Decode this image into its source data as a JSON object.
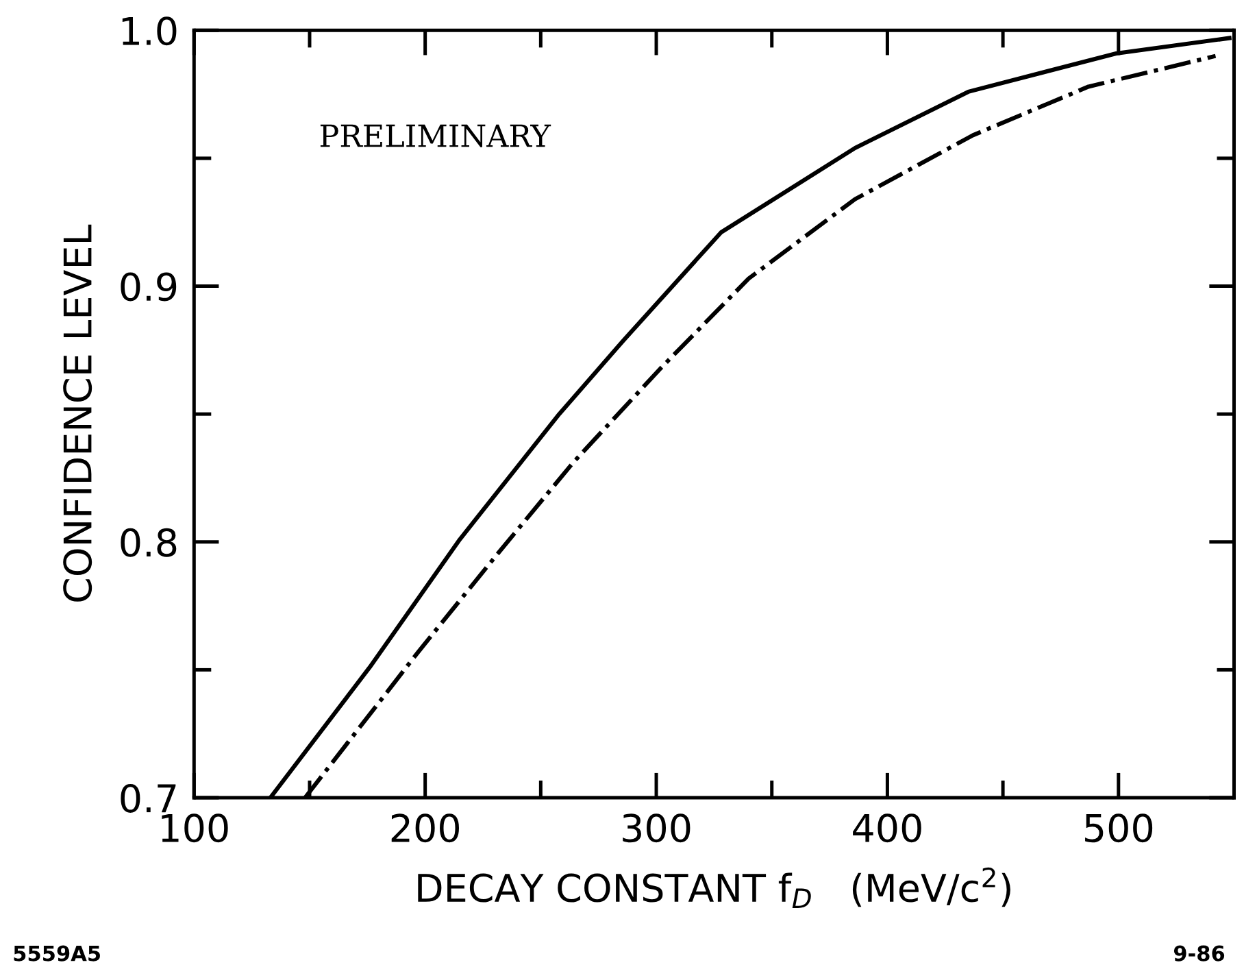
{
  "chart_data": {
    "type": "line",
    "xlabel": "DECAY CONSTANT f$_{D}$   (MeV/c$^{2}$)",
    "ylabel": "CONFIDENCE LEVEL",
    "annotations": [
      "PRELIMINARY",
      "5559A5",
      "9-86"
    ],
    "xlim": [
      100,
      550
    ],
    "ylim": [
      0.7,
      1.0
    ],
    "xticks": [
      100,
      200,
      300,
      400,
      500,
      {
        "value": 150,
        "label": null
      },
      {
        "value": 250,
        "label": null
      },
      {
        "value": 350,
        "label": null
      },
      {
        "value": 450,
        "label": null
      }
    ],
    "yticks": [
      {
        "value": 0.7,
        "label": "0.7"
      },
      {
        "value": 0.8,
        "label": "0.8"
      },
      {
        "value": 0.9,
        "label": "0.9"
      },
      {
        "value": 1.0,
        "label": "1.0"
      },
      {
        "value": 0.75,
        "label": null
      },
      {
        "value": 0.85,
        "label": null
      },
      {
        "value": 0.95,
        "label": null
      }
    ],
    "grid": false,
    "legend": false,
    "series": [
      {
        "color": "#000000",
        "line_style": "solid",
        "x": [
          133,
          176,
          215,
          258,
          286,
          328,
          386,
          435,
          499,
          548
        ],
        "values": [
          0.7,
          0.751,
          0.801,
          0.85,
          0.879,
          0.921,
          0.954,
          0.976,
          0.991,
          0.997
        ]
      },
      {
        "color": "#000000",
        "line_style": "dashdot",
        "x": [
          148,
          197,
          231,
          264,
          302,
          340,
          386,
          437,
          487,
          542
        ],
        "values": [
          0.7,
          0.757,
          0.795,
          0.831,
          0.868,
          0.903,
          0.934,
          0.959,
          0.978,
          0.99
        ]
      }
    ]
  }
}
